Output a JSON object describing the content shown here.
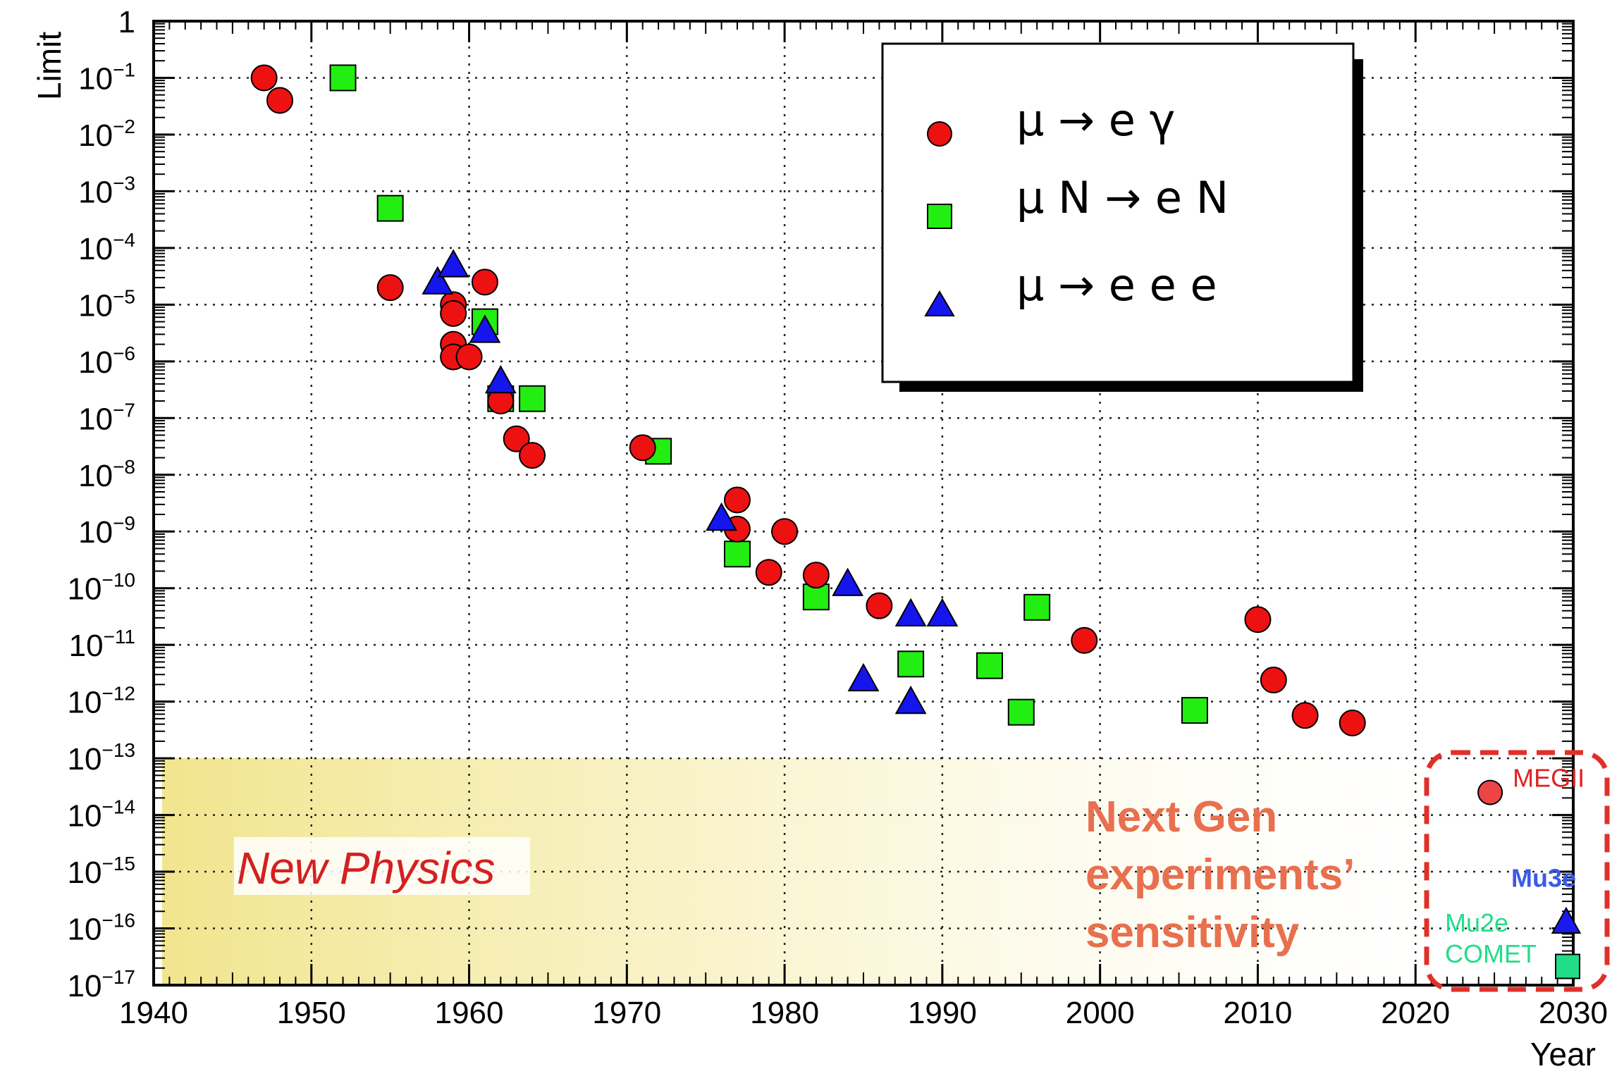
{
  "chart_data": {
    "type": "scatter",
    "xlabel": "Year",
    "ylabel": "Limit",
    "xlim": [
      1940,
      2030
    ],
    "ylim": [
      1e-17,
      1
    ],
    "yscale": "log",
    "grid": true,
    "x_ticks": [
      "1940",
      "1950",
      "1960",
      "1970",
      "1980",
      "1990",
      "2000",
      "2010",
      "2020",
      "2030"
    ],
    "y_ticks": [
      {
        "base": "1",
        "exp": ""
      },
      {
        "base": "10",
        "exp": "−1"
      },
      {
        "base": "10",
        "exp": "−2"
      },
      {
        "base": "10",
        "exp": "−3"
      },
      {
        "base": "10",
        "exp": "−4"
      },
      {
        "base": "10",
        "exp": "−5"
      },
      {
        "base": "10",
        "exp": "−6"
      },
      {
        "base": "10",
        "exp": "−7"
      },
      {
        "base": "10",
        "exp": "−8"
      },
      {
        "base": "10",
        "exp": "−9"
      },
      {
        "base": "10",
        "exp": "−10"
      },
      {
        "base": "10",
        "exp": "−11"
      },
      {
        "base": "10",
        "exp": "−12"
      },
      {
        "base": "10",
        "exp": "−13"
      },
      {
        "base": "10",
        "exp": "−14"
      },
      {
        "base": "10",
        "exp": "−15"
      },
      {
        "base": "10",
        "exp": "−16"
      },
      {
        "base": "10",
        "exp": "−17"
      }
    ],
    "legend_position": "top-right",
    "series": [
      {
        "name": "μ → e γ",
        "marker": "circle",
        "color": "#ee1111",
        "points": [
          [
            1947,
            0.1
          ],
          [
            1948,
            0.04
          ],
          [
            1955,
            2e-05
          ],
          [
            1959,
            1e-05
          ],
          [
            1959,
            7e-06
          ],
          [
            1959,
            2e-06
          ],
          [
            1959,
            1.2e-06
          ],
          [
            1960,
            1.2e-06
          ],
          [
            1961,
            2.5e-05
          ],
          [
            1962,
            2e-07
          ],
          [
            1963,
            4.3e-08
          ],
          [
            1964,
            2.2e-08
          ],
          [
            1971,
            3e-08
          ],
          [
            1977,
            3.6e-09
          ],
          [
            1977,
            1.1e-09
          ],
          [
            1979,
            1.9e-10
          ],
          [
            1980,
            1e-09
          ],
          [
            1982,
            1.7e-10
          ],
          [
            1986,
            4.9e-11
          ],
          [
            1999,
            1.2e-11
          ],
          [
            2010,
            2.8e-11
          ],
          [
            2011,
            2.4e-12
          ],
          [
            2013,
            5.7e-13
          ],
          [
            2016,
            4.2e-13
          ]
        ]
      },
      {
        "name": "μ N →  e N",
        "marker": "square",
        "color": "#22ee11",
        "points": [
          [
            1952,
            0.1
          ],
          [
            1955,
            0.0005
          ],
          [
            1961,
            5e-06
          ],
          [
            1962,
            2.2e-07
          ],
          [
            1964,
            2.2e-07
          ],
          [
            1972,
            2.6e-08
          ],
          [
            1977,
            4e-10
          ],
          [
            1982,
            7e-11
          ],
          [
            1988,
            4.6e-12
          ],
          [
            1993,
            4.3e-12
          ],
          [
            1995,
            6.5e-13
          ],
          [
            1996,
            4.6e-11
          ],
          [
            2006,
            7e-13
          ]
        ]
      },
      {
        "name": "μ → e e e",
        "marker": "triangle",
        "color": "#1515ee",
        "points": [
          [
            1958,
            2.5e-05
          ],
          [
            1959,
            5e-05
          ],
          [
            1961,
            3.5e-06
          ],
          [
            1962,
            4.5e-07
          ],
          [
            1976,
            1.7e-09
          ],
          [
            1984,
            1.2e-10
          ],
          [
            1985,
            2.5e-12
          ],
          [
            1988,
            3.5e-11
          ],
          [
            1988,
            1e-12
          ],
          [
            1990,
            3.5e-11
          ]
        ]
      }
    ],
    "future_projections": [
      {
        "label": "MEGII",
        "marker": "circle",
        "color": "#ee4444",
        "x": 2025,
        "y": 2.5e-14
      },
      {
        "label": "Mu3e",
        "marker": "triangle",
        "color": "#1a1aee",
        "x": 2030,
        "y": 1.3e-16
      },
      {
        "label": "Mu2e",
        "marker": "square",
        "color": "#22dd88",
        "x": 2030,
        "y": 1.7e-17
      },
      {
        "label": "COMET",
        "marker": "square",
        "color": "#22dd88",
        "x": 2030,
        "y": 1.7e-17
      }
    ],
    "annotations": {
      "new_physics": "New Physics",
      "next_gen": [
        "Next Gen",
        "experiments’",
        "sensitivity"
      ]
    }
  }
}
